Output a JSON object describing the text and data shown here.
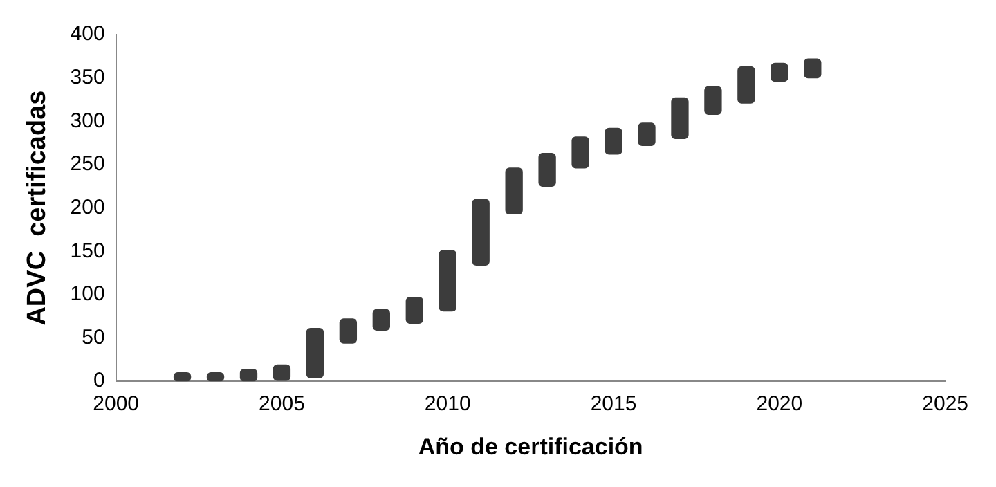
{
  "chart_data": {
    "type": "bar",
    "xlabel": "Año de certificación",
    "ylabel": "ADVC  certificadas",
    "x": [
      2002,
      2003,
      2004,
      2005,
      2006,
      2007,
      2008,
      2009,
      2010,
      2011,
      2012,
      2013,
      2014,
      2015,
      2016,
      2017,
      2018,
      2019,
      2020,
      2021
    ],
    "base": [
      0,
      0,
      0,
      1,
      4,
      44,
      59,
      67,
      81,
      134,
      193,
      225,
      246,
      262,
      272,
      280,
      308,
      321,
      346,
      350
    ],
    "values": [
      10,
      10,
      14,
      18,
      57,
      28,
      24,
      30,
      70,
      76,
      53,
      38,
      36,
      30,
      26,
      47,
      32,
      42,
      21,
      22
    ],
    "color": "#3c3c3c",
    "xlim": [
      2000,
      2025
    ],
    "xticks": [
      2000,
      2005,
      2010,
      2015,
      2020,
      2025
    ],
    "ylim": [
      0,
      400
    ],
    "yticks": [
      0,
      50,
      100,
      150,
      200,
      250,
      300,
      350,
      400
    ],
    "grid": false,
    "legend": false
  }
}
